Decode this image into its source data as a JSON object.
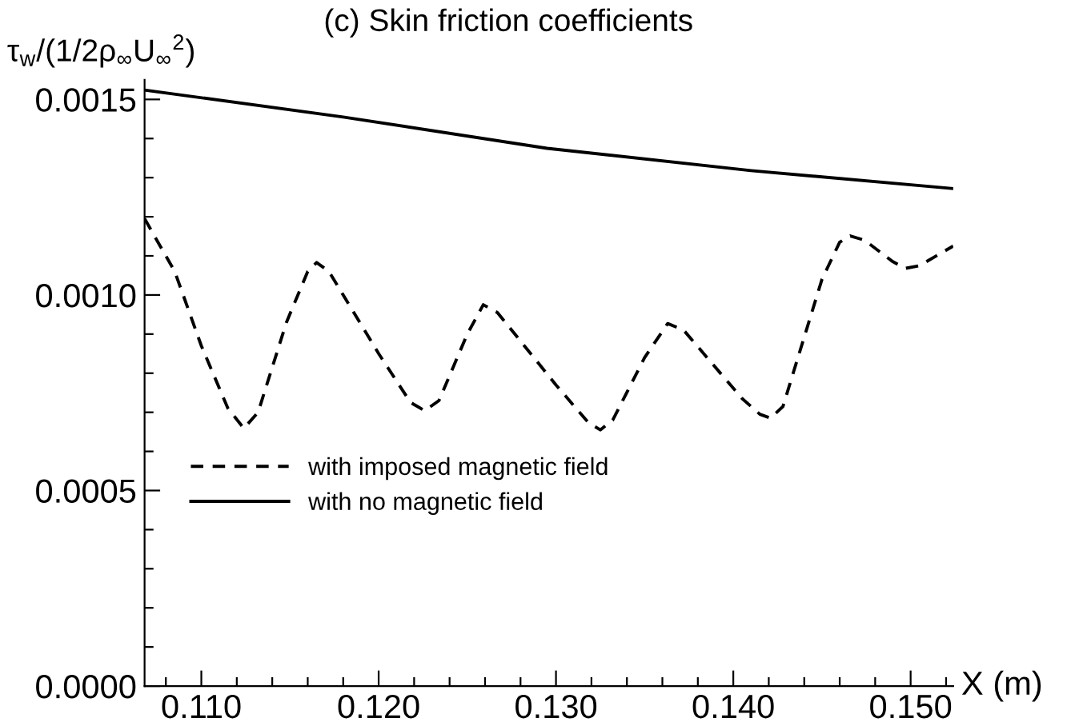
{
  "chart_data": {
    "type": "line",
    "title": "(c) Skin friction coefficients",
    "ylabel": "τ$_{w}$/(1/2ρ$_{∞}$U$_{∞}$$^{2}$)",
    "xlabel": "X (m)",
    "series": [
      {
        "name": "with imposed magnetic field",
        "color": "#000000",
        "line_style": "dashed",
        "x": [
          0.1068,
          0.1085,
          0.11,
          0.1115,
          0.1124,
          0.1132,
          0.1148,
          0.116,
          0.1165,
          0.1172,
          0.12,
          0.1218,
          0.1226,
          0.1234,
          0.125,
          0.1259,
          0.1267,
          0.13,
          0.1318,
          0.1325,
          0.1332,
          0.135,
          0.1363,
          0.1372,
          0.1405,
          0.1415,
          0.1421,
          0.1428,
          0.145,
          0.146,
          0.1466,
          0.1474,
          0.149,
          0.1497,
          0.1505,
          0.1524
        ],
        "values": [
          0.001195,
          0.00106,
          0.00087,
          0.00071,
          0.000659,
          0.0007,
          0.00093,
          0.00106,
          0.001083,
          0.00106,
          0.00085,
          0.000725,
          0.000704,
          0.00073,
          0.0009,
          0.000975,
          0.000955,
          0.00077,
          0.000675,
          0.000655,
          0.00068,
          0.00084,
          0.000927,
          0.00091,
          0.000735,
          0.000695,
          0.000685,
          0.000715,
          0.00104,
          0.001135,
          0.001151,
          0.00114,
          0.001085,
          0.001068,
          0.001075,
          0.001125
        ]
      },
      {
        "name": "with no magnetic field",
        "color": "#000000",
        "line_style": "solid",
        "x": [
          0.1068,
          0.118,
          0.1295,
          0.141,
          0.1524
        ],
        "values": [
          0.001524,
          0.001455,
          0.001375,
          0.001318,
          0.001272
        ]
      }
    ],
    "xlim": [
      0.1068,
      0.1524
    ],
    "ylim": [
      0,
      0.00155
    ],
    "xticks": [
      {
        "value": 0.108,
        "label": null
      },
      {
        "value": 0.11,
        "label": "0.110"
      },
      {
        "value": 0.112,
        "label": null
      },
      {
        "value": 0.114,
        "label": null
      },
      {
        "value": 0.116,
        "label": null
      },
      {
        "value": 0.118,
        "label": null
      },
      {
        "value": 0.12,
        "label": "0.120"
      },
      {
        "value": 0.122,
        "label": null
      },
      {
        "value": 0.124,
        "label": null
      },
      {
        "value": 0.126,
        "label": null
      },
      {
        "value": 0.128,
        "label": null
      },
      {
        "value": 0.13,
        "label": "0.130"
      },
      {
        "value": 0.132,
        "label": null
      },
      {
        "value": 0.134,
        "label": null
      },
      {
        "value": 0.136,
        "label": null
      },
      {
        "value": 0.138,
        "label": null
      },
      {
        "value": 0.14,
        "label": "0.140"
      },
      {
        "value": 0.142,
        "label": null
      },
      {
        "value": 0.144,
        "label": null
      },
      {
        "value": 0.146,
        "label": null
      },
      {
        "value": 0.148,
        "label": null
      },
      {
        "value": 0.15,
        "label": "0.150"
      },
      {
        "value": 0.152,
        "label": null
      }
    ],
    "yticks": [
      {
        "value": 0,
        "label": "0.0000"
      },
      {
        "value": 0.0001,
        "label": null
      },
      {
        "value": 0.0002,
        "label": null
      },
      {
        "value": 0.0003,
        "label": null
      },
      {
        "value": 0.0004,
        "label": null
      },
      {
        "value": 0.0005,
        "label": "0.0005"
      },
      {
        "value": 0.0006,
        "label": null
      },
      {
        "value": 0.0007,
        "label": null
      },
      {
        "value": 0.0008,
        "label": null
      },
      {
        "value": 0.0009,
        "label": null
      },
      {
        "value": 0.001,
        "label": "0.0010"
      },
      {
        "value": 0.0011,
        "label": null
      },
      {
        "value": 0.0012,
        "label": null
      },
      {
        "value": 0.0013,
        "label": null
      },
      {
        "value": 0.0014,
        "label": null
      },
      {
        "value": 0.0015,
        "label": "0.0015"
      }
    ],
    "grid": false,
    "legend": "left",
    "marker": "none"
  }
}
